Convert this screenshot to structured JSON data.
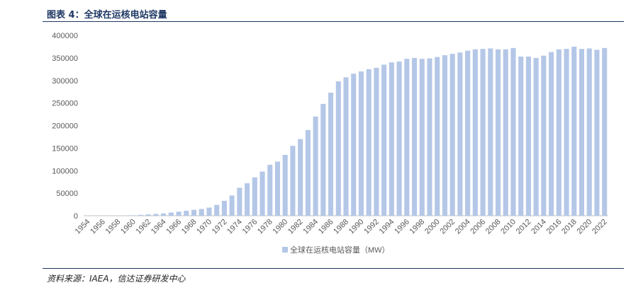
{
  "header": {
    "title": "图表 4：全球在运核电站容量"
  },
  "source": {
    "text": "资料来源：IAEA，信达证券研发中心"
  },
  "colors": {
    "bar": "#B4C7E7",
    "axis": "#BFBFBF",
    "text": "#595959",
    "header": "#1F3864"
  },
  "chart_data": {
    "type": "bar",
    "title": "",
    "xlabel": "",
    "ylabel": "",
    "ylim": [
      0,
      400000
    ],
    "yticks": [
      0,
      50000,
      100000,
      150000,
      200000,
      250000,
      300000,
      350000,
      400000
    ],
    "grid": false,
    "legend_position": "bottom",
    "categories": [
      "1954",
      "1955",
      "1956",
      "1957",
      "1958",
      "1959",
      "1960",
      "1961",
      "1962",
      "1963",
      "1964",
      "1965",
      "1966",
      "1967",
      "1968",
      "1969",
      "1970",
      "1971",
      "1972",
      "1973",
      "1974",
      "1975",
      "1976",
      "1977",
      "1978",
      "1979",
      "1980",
      "1981",
      "1982",
      "1983",
      "1984",
      "1985",
      "1986",
      "1987",
      "1988",
      "1989",
      "1990",
      "1991",
      "1992",
      "1993",
      "1994",
      "1995",
      "1996",
      "1997",
      "1998",
      "1999",
      "2000",
      "2001",
      "2002",
      "2003",
      "2004",
      "2005",
      "2006",
      "2007",
      "2008",
      "2009",
      "2010",
      "2011",
      "2012",
      "2013",
      "2014",
      "2015",
      "2016",
      "2017",
      "2018",
      "2019",
      "2020",
      "2021",
      "2022"
    ],
    "xtick_labels": [
      "1954",
      "1956",
      "1958",
      "1960",
      "1962",
      "1964",
      "1966",
      "1968",
      "1970",
      "1972",
      "1974",
      "1976",
      "1978",
      "1980",
      "1982",
      "1984",
      "1986",
      "1988",
      "1990",
      "1992",
      "1994",
      "1996",
      "1998",
      "2000",
      "2002",
      "2004",
      "2006",
      "2008",
      "2010",
      "2012",
      "2014",
      "2016",
      "2018",
      "2020",
      "2022"
    ],
    "series": [
      {
        "name": "全球在运核电站容量（MW）",
        "values": [
          5,
          5,
          60,
          200,
          300,
          500,
          1000,
          2000,
          3000,
          4000,
          5000,
          7000,
          9000,
          11000,
          13000,
          15000,
          18000,
          24000,
          33000,
          45000,
          62000,
          72000,
          85000,
          98000,
          113000,
          120000,
          135000,
          155000,
          170000,
          190000,
          220000,
          248000,
          273000,
          298000,
          307000,
          315000,
          320000,
          325000,
          328000,
          335000,
          340000,
          342000,
          348000,
          350000,
          348000,
          349000,
          352000,
          356000,
          359000,
          362000,
          366000,
          369000,
          370000,
          371000,
          369000,
          369000,
          372000,
          353000,
          353000,
          350000,
          355000,
          363000,
          369000,
          370000,
          375000,
          370000,
          371000,
          368000,
          372000
        ]
      }
    ]
  }
}
